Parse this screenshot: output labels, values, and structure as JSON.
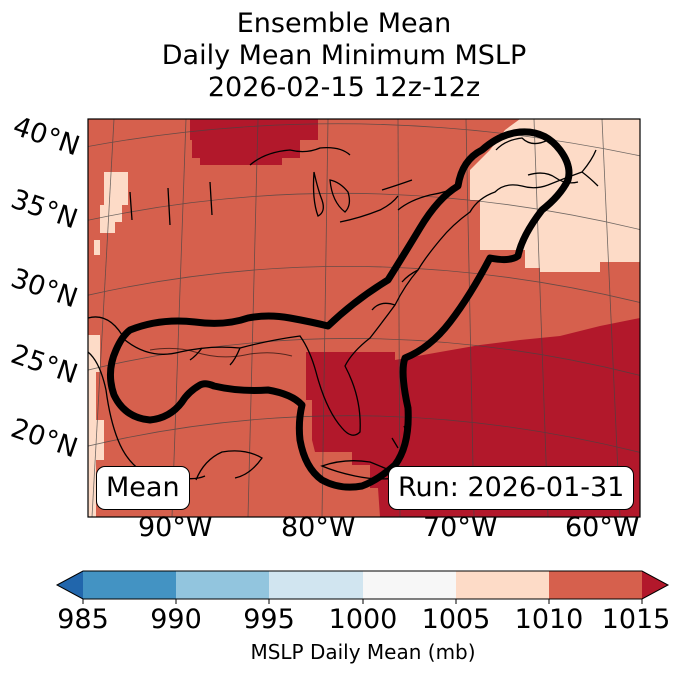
{
  "title": {
    "line1": "Ensemble Mean",
    "line2": "Daily Mean Minimum MSLP",
    "line3": "2026-02-15 12z-12z"
  },
  "map": {
    "lat_labels": [
      "40°N",
      "35°N",
      "30°N",
      "25°N",
      "20°N"
    ],
    "lon_labels": [
      "90°W",
      "80°W",
      "70°W",
      "60°W"
    ],
    "mean_box": "Mean",
    "run_box": "Run: 2026-01-31",
    "fill_colors": {
      "1005-1010": "#fddbc7",
      "1010-1015": "#d6604d",
      "over-1015": "#b2182b"
    },
    "contour_color": "#000000"
  },
  "colorbar": {
    "label": "MSLP Daily Mean (mb)",
    "ticks": [
      "985",
      "990",
      "995",
      "1000",
      "1005",
      "1010",
      "1015"
    ],
    "bins": [
      {
        "range": "<985",
        "color": "#2166ac"
      },
      {
        "range": "985-990",
        "color": "#4393c3"
      },
      {
        "range": "990-995",
        "color": "#92c5de"
      },
      {
        "range": "995-1000",
        "color": "#d1e5f0"
      },
      {
        "range": "1000-1005",
        "color": "#f7f7f7"
      },
      {
        "range": "1005-1010",
        "color": "#fddbc7"
      },
      {
        "range": "1010-1015",
        "color": "#d6604d"
      },
      {
        "range": ">1015",
        "color": "#b2182b"
      }
    ]
  }
}
